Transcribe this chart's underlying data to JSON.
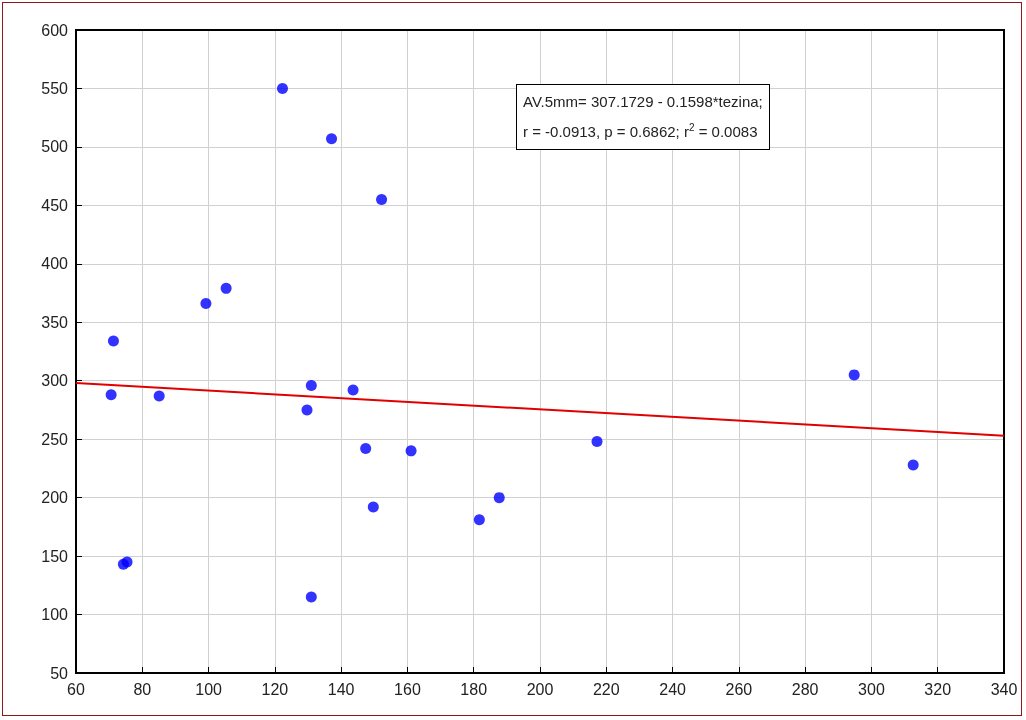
{
  "chart_data": {
    "type": "scatter",
    "annotations": [
      "AV.5mm= 307.1729 - 0.1598*tezina;",
      "r = -0.0913, p = 0.6862; r$^{2}$ = 0.0083"
    ],
    "series": [
      {
        "color": "#0000ff",
        "marker": "circle",
        "x": [
          71.3,
          99.2,
          105.3,
          122.3,
          137.1,
          152.2,
          70.6,
          74.3,
          75.4,
          85.1,
          129.7,
          131.0,
          131.0,
          143.6,
          147.4,
          149.7,
          161.1,
          181.7,
          187.7,
          217.2,
          294.8,
          312.6
        ],
        "values": [
          334,
          366,
          379,
          550,
          507,
          455,
          288,
          143,
          145,
          287,
          275,
          296,
          115,
          292,
          242,
          192,
          240,
          181,
          200,
          248,
          305,
          228
        ]
      },
      {
        "type": "line",
        "color": "#e00000",
        "marker": "none",
        "line_style": "solid",
        "x": [
          60,
          340
        ],
        "values": [
          298,
          253
        ]
      }
    ],
    "xlim": [
      60,
      340
    ],
    "xticks": [
      60,
      80,
      100,
      120,
      140,
      160,
      180,
      200,
      220,
      240,
      260,
      280,
      300,
      320,
      340
    ],
    "ylim": [
      50,
      600
    ],
    "yticks": [
      50,
      100,
      150,
      200,
      250,
      300,
      350,
      400,
      450,
      500,
      550,
      600
    ],
    "grid": true
  }
}
